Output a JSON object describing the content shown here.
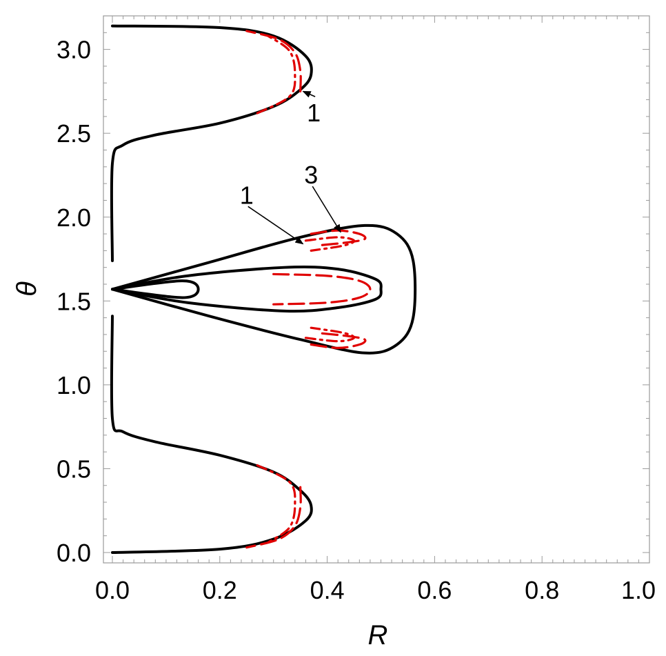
{
  "chart_data": {
    "type": "line",
    "title": "",
    "xlabel": "R",
    "ylabel": "θ",
    "xlim": [
      0.0,
      1.0
    ],
    "ylim": [
      0.0,
      3.2
    ],
    "x_ticks": [
      "0.0",
      "0.2",
      "0.4",
      "0.6",
      "0.8",
      "1.0"
    ],
    "y_ticks": [
      "0.0",
      "0.5",
      "1.0",
      "1.5",
      "2.0",
      "2.5",
      "3.0"
    ],
    "grid": false,
    "legend": "none",
    "series": [
      {
        "style": "solid",
        "color": "#000000",
        "points": [
          [
            0.0,
            1.57
          ],
          [
            0.13,
            1.62
          ],
          [
            0.16,
            1.57
          ],
          [
            0.13,
            1.52
          ],
          [
            0.0,
            1.57
          ]
        ]
      },
      {
        "style": "solid",
        "color": "#000000",
        "points": [
          [
            0.0,
            1.57
          ],
          [
            0.14,
            1.65
          ],
          [
            0.32,
            1.7
          ],
          [
            0.42,
            1.69
          ],
          [
            0.49,
            1.63
          ],
          [
            0.5,
            1.57
          ],
          [
            0.49,
            1.51
          ],
          [
            0.42,
            1.46
          ],
          [
            0.32,
            1.44
          ],
          [
            0.14,
            1.49
          ],
          [
            0.0,
            1.57
          ]
        ]
      },
      {
        "style": "solid",
        "color": "#000000",
        "points": [
          [
            0.0,
            1.57
          ],
          [
            0.18,
            1.73
          ],
          [
            0.35,
            1.88
          ],
          [
            0.47,
            1.95
          ],
          [
            0.53,
            1.9
          ],
          [
            0.56,
            1.74
          ],
          [
            0.56,
            1.4
          ],
          [
            0.53,
            1.24
          ],
          [
            0.47,
            1.19
          ],
          [
            0.35,
            1.27
          ],
          [
            0.18,
            1.41
          ],
          [
            0.0,
            1.57
          ]
        ]
      },
      {
        "style": "solid",
        "color": "#000000",
        "points": [
          [
            0.0,
            3.14
          ],
          [
            0.2,
            3.13
          ],
          [
            0.3,
            3.08
          ],
          [
            0.36,
            2.96
          ],
          [
            0.37,
            2.85
          ],
          [
            0.35,
            2.76
          ],
          [
            0.3,
            2.66
          ],
          [
            0.2,
            2.56
          ],
          [
            0.08,
            2.49
          ],
          [
            0.02,
            2.43
          ],
          [
            0.0,
            2.32
          ],
          [
            0.0,
            1.74
          ]
        ]
      },
      {
        "style": "solid",
        "color": "#000000",
        "points": [
          [
            0.0,
            0.0
          ],
          [
            0.2,
            0.02
          ],
          [
            0.3,
            0.08
          ],
          [
            0.36,
            0.19
          ],
          [
            0.37,
            0.28
          ],
          [
            0.35,
            0.37
          ],
          [
            0.3,
            0.48
          ],
          [
            0.2,
            0.58
          ],
          [
            0.08,
            0.66
          ],
          [
            0.02,
            0.72
          ],
          [
            0.0,
            0.8
          ],
          [
            0.0,
            1.41
          ]
        ]
      },
      {
        "style": "dashed",
        "color": "#e00000",
        "points": [
          [
            0.35,
            2.75
          ],
          [
            0.35,
            2.87
          ],
          [
            0.34,
            2.98
          ],
          [
            0.31,
            3.06
          ],
          [
            0.25,
            3.11
          ]
        ]
      },
      {
        "style": "dashdot",
        "color": "#e00000",
        "points": [
          [
            0.27,
            2.62
          ],
          [
            0.33,
            2.72
          ],
          [
            0.34,
            2.85
          ],
          [
            0.33,
            2.99
          ],
          [
            0.29,
            3.08
          ]
        ]
      },
      {
        "style": "dashed",
        "color": "#e00000",
        "points": [
          [
            0.35,
            0.39
          ],
          [
            0.35,
            0.27
          ],
          [
            0.34,
            0.16
          ],
          [
            0.31,
            0.08
          ],
          [
            0.25,
            0.03
          ]
        ]
      },
      {
        "style": "dashdot",
        "color": "#e00000",
        "points": [
          [
            0.27,
            0.52
          ],
          [
            0.33,
            0.42
          ],
          [
            0.34,
            0.29
          ],
          [
            0.33,
            0.15
          ],
          [
            0.29,
            0.06
          ]
        ]
      },
      {
        "style": "dashed",
        "color": "#e00000",
        "points": [
          [
            0.3,
            1.66
          ],
          [
            0.4,
            1.65
          ],
          [
            0.46,
            1.62
          ],
          [
            0.48,
            1.57
          ],
          [
            0.46,
            1.52
          ],
          [
            0.4,
            1.49
          ],
          [
            0.3,
            1.48
          ]
        ]
      },
      {
        "style": "dashed",
        "color": "#e00000",
        "points": [
          [
            0.37,
            1.9
          ],
          [
            0.42,
            1.92
          ],
          [
            0.46,
            1.9
          ],
          [
            0.47,
            1.87
          ],
          [
            0.44,
            1.85
          ],
          [
            0.38,
            1.83
          ]
        ]
      },
      {
        "style": "dashdot",
        "color": "#e00000",
        "points": [
          [
            0.36,
            1.86
          ],
          [
            0.42,
            1.88
          ],
          [
            0.45,
            1.86
          ],
          [
            0.43,
            1.83
          ],
          [
            0.37,
            1.8
          ]
        ]
      },
      {
        "style": "dashed",
        "color": "#e00000",
        "points": [
          [
            0.37,
            1.24
          ],
          [
            0.42,
            1.22
          ],
          [
            0.46,
            1.24
          ],
          [
            0.47,
            1.27
          ],
          [
            0.44,
            1.29
          ],
          [
            0.38,
            1.31
          ]
        ]
      },
      {
        "style": "dashdot",
        "color": "#e00000",
        "points": [
          [
            0.36,
            1.28
          ],
          [
            0.42,
            1.26
          ],
          [
            0.45,
            1.28
          ],
          [
            0.43,
            1.31
          ],
          [
            0.37,
            1.34
          ]
        ]
      }
    ],
    "annotations": [
      {
        "text": "1",
        "x": 0.375,
        "y": 2.57,
        "arrow_to": [
          0.355,
          2.75
        ]
      },
      {
        "text": "1",
        "x": 0.25,
        "y": 2.08,
        "arrow_to": [
          0.355,
          1.84
        ]
      },
      {
        "text": "3",
        "x": 0.37,
        "y": 2.2,
        "arrow_to": [
          0.425,
          1.91
        ]
      }
    ]
  }
}
